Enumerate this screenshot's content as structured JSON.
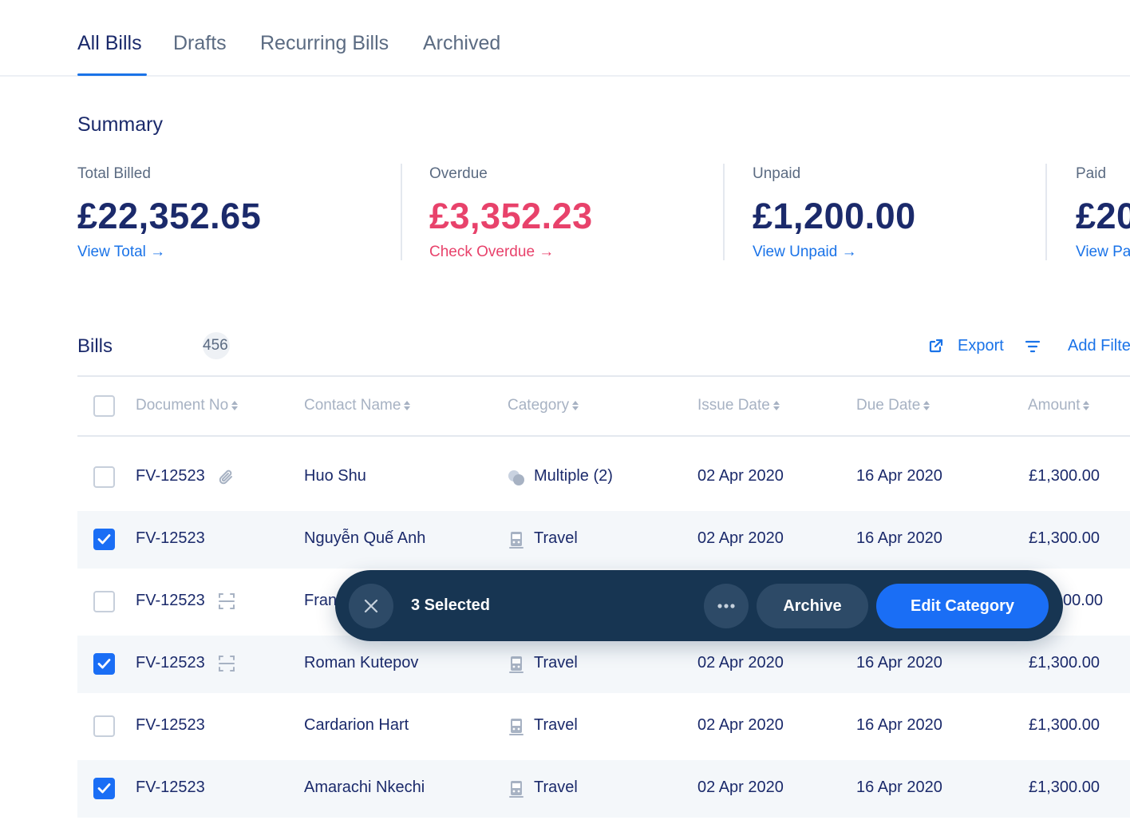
{
  "tabs": [
    {
      "label": "All Bills",
      "active": true
    },
    {
      "label": "Drafts",
      "active": false
    },
    {
      "label": "Recurring Bills",
      "active": false
    },
    {
      "label": "Archived",
      "active": false
    }
  ],
  "summary": {
    "title": "Summary",
    "cards": [
      {
        "label": "Total Billed",
        "amount": "£22,352.65",
        "link": "View Total →",
        "tone": "default"
      },
      {
        "label": "Overdue",
        "amount": "£3,352.23",
        "link": "Check Overdue →",
        "tone": "red"
      },
      {
        "label": "Unpaid",
        "amount": "£1,200.00",
        "link": "View Unpaid →",
        "tone": "default"
      },
      {
        "label": "Paid",
        "amount": "£20",
        "link": "View Pa",
        "tone": "default"
      }
    ]
  },
  "bills": {
    "title": "Bills",
    "count": "456",
    "export_label": "Export",
    "add_filter_label": "Add Filte"
  },
  "table": {
    "columns": [
      "Document No",
      "Contact Name",
      "Category",
      "Issue Date",
      "Due Date",
      "Amount"
    ],
    "rows": [
      {
        "doc": "FV-12523",
        "doc_icon": "paperclip-icon",
        "contact": "Huo Shu",
        "category": "Multiple (2)",
        "category_icon": "multiple-category-icon",
        "issue": "02 Apr 2020",
        "due": "16 Apr 2020",
        "amount": "£1,300.00",
        "checked": false
      },
      {
        "doc": "FV-12523",
        "doc_icon": "",
        "contact": "Nguyễn Quế Anh",
        "category": "Travel",
        "category_icon": "train-icon",
        "issue": "02 Apr 2020",
        "due": "16 Apr 2020",
        "amount": "£1,300.00",
        "checked": true
      },
      {
        "doc": "FV-12523",
        "doc_icon": "scan-icon",
        "contact": "Fran",
        "category": "",
        "category_icon": "",
        "issue": "",
        "due": "",
        "amount": "00.00",
        "checked": false
      },
      {
        "doc": "FV-12523",
        "doc_icon": "scan-icon",
        "contact": "Roman Kutepov",
        "category": "Travel",
        "category_icon": "train-icon",
        "issue": "02 Apr 2020",
        "due": "16 Apr 2020",
        "amount": "£1,300.00",
        "checked": true
      },
      {
        "doc": "FV-12523",
        "doc_icon": "",
        "contact": "Cardarion Hart",
        "category": "Travel",
        "category_icon": "train-icon",
        "issue": "02 Apr 2020",
        "due": "16 Apr 2020",
        "amount": "£1,300.00",
        "checked": false
      },
      {
        "doc": "FV-12523",
        "doc_icon": "",
        "contact": "Amarachi Nkechi",
        "category": "Travel",
        "category_icon": "train-icon",
        "issue": "02 Apr 2020",
        "due": "16 Apr 2020",
        "amount": "£1,300.00",
        "checked": true
      }
    ]
  },
  "action_bar": {
    "selected_label": "3 Selected",
    "archive_label": "Archive",
    "edit_label": "Edit Category",
    "close_icon": "close-icon",
    "more_icon": "more-horizontal-icon"
  },
  "colors": {
    "primary": "#1a6ef5",
    "link": "#1a73e8",
    "text_dark": "#1b2a6b",
    "overdue_red": "#e8426b",
    "action_bar_bg": "#173552"
  }
}
